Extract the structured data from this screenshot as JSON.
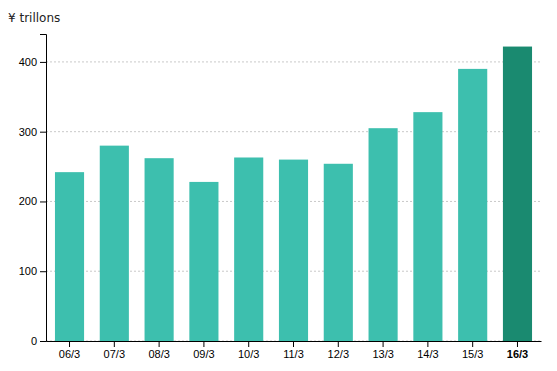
{
  "chart_data": {
    "type": "bar",
    "ylabel": "¥ trillons",
    "categories": [
      "06/3",
      "07/3",
      "08/3",
      "09/3",
      "10/3",
      "11/3",
      "12/3",
      "13/3",
      "14/3",
      "15/3",
      "16/3"
    ],
    "values": [
      242,
      280,
      262,
      228,
      263,
      260,
      254,
      305,
      328,
      390,
      422
    ],
    "colors": [
      "#3dbfae",
      "#3dbfae",
      "#3dbfae",
      "#3dbfae",
      "#3dbfae",
      "#3dbfae",
      "#3dbfae",
      "#3dbfae",
      "#3dbfae",
      "#3dbfae",
      "#1a8a70"
    ],
    "ylim": [
      0,
      440
    ],
    "yticks": [
      0,
      100,
      200,
      300,
      400
    ],
    "grid": true
  }
}
